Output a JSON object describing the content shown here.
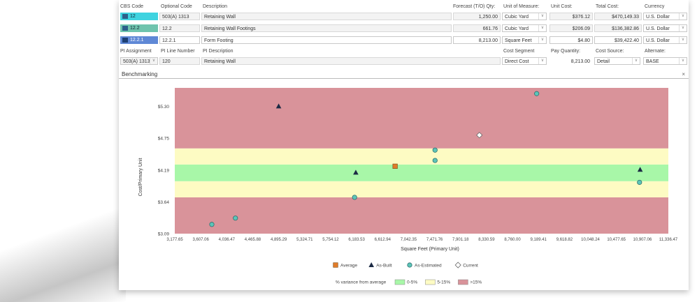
{
  "header": {
    "cbs_code": "CBS Code",
    "optional_code": "Optional Code",
    "description": "Description",
    "forecast_qty": "Forecast (T/O) Qty:",
    "unit_of_measure": "Unit of Measure:",
    "unit_cost": "Unit Cost:",
    "total_cost": "Total Cost:",
    "currency": "Currency"
  },
  "rows": [
    {
      "cbs": "12",
      "optional": "503(A) 1313",
      "description": "Retaining Wall",
      "qty": "1,250.00",
      "uom": "Cubic Yard",
      "unit_cost": "$376.12",
      "total": "$470,149.33",
      "currency": "U.S. Dollar",
      "color": "#3fd3e0"
    },
    {
      "cbs": "12.2",
      "optional": "12.2",
      "description": "Retaining Wall Footings",
      "qty": "661.76",
      "uom": "Cubic Yard",
      "unit_cost": "$206.09",
      "total": "$136,382.86",
      "currency": "U.S. Dollar",
      "color": "#6fc4ae"
    },
    {
      "cbs": "12.2.1",
      "optional": "12.2.1",
      "description": "Form Footing",
      "qty": "8,213.00",
      "uom": "Square Feet",
      "unit_cost": "$4.80",
      "total": "$39,422.40",
      "currency": "U.S. Dollar",
      "color": "#5f88d6"
    }
  ],
  "pi": {
    "assignment_label": "PI Assignment",
    "line_number_label": "PI Line Number",
    "description_label": "PI Description",
    "cost_segment_label": "Cost Segment",
    "pay_quantity_label": "Pay Quantity:",
    "cost_source_label": "Cost Source:",
    "alternate_label": "Alternate:",
    "assignment": "503(A) 1313",
    "line_number": "120",
    "description": "Retaining Wall",
    "cost_segment": "Direct Cost",
    "pay_quantity": "8,213.00",
    "cost_source": "Detail",
    "alternate": "BASE"
  },
  "benchmark": {
    "title": "Benchmarking",
    "close": "×"
  },
  "chart_data": {
    "type": "scatter",
    "xlabel": "Square Feet (Primary Unit)",
    "ylabel": "Cost/Primary Unit",
    "xlim": [
      3177.65,
      11336.47
    ],
    "ylim": [
      3.09,
      5.62
    ],
    "x_ticks": [
      "3,177.65",
      "3,607.06",
      "4,036.47",
      "4,465.88",
      "4,895.29",
      "5,324.71",
      "5,754.12",
      "6,183.53",
      "6,612.94",
      "7,042.35",
      "7,471.76",
      "7,901.18",
      "8,330.59",
      "8,760.00",
      "9,189.41",
      "9,618.82",
      "10,048.24",
      "10,477.65",
      "10,907.06",
      "11,336.47"
    ],
    "x_tick_values": [
      3177.65,
      3607.06,
      4036.47,
      4465.88,
      4895.29,
      5324.71,
      5754.12,
      6183.53,
      6612.94,
      7042.35,
      7471.76,
      7901.18,
      8330.59,
      8760.0,
      9189.41,
      9618.82,
      10048.24,
      10477.65,
      10907.06,
      11336.47
    ],
    "y_ticks": [
      "$3.09",
      "$3.64",
      "$4.19",
      "$4.75",
      "$5.30"
    ],
    "y_tick_values": [
      3.09,
      3.64,
      4.19,
      4.75,
      5.3
    ],
    "bands": [
      {
        "from": 3.09,
        "to": 3.72,
        "color": "#d9939a"
      },
      {
        "from": 3.72,
        "to": 4.0,
        "color": "#fdfbc3"
      },
      {
        "from": 4.0,
        "to": 4.29,
        "color": "#a8f7a8"
      },
      {
        "from": 4.29,
        "to": 4.57,
        "color": "#fdfbc3"
      },
      {
        "from": 4.57,
        "to": 5.62,
        "color": "#d9939a"
      }
    ],
    "series": [
      {
        "name": "Average",
        "marker": "square",
        "color": "#e07b2a",
        "points": [
          [
            6820,
            4.26
          ]
        ]
      },
      {
        "name": "As-Built",
        "marker": "triangle",
        "color": "#1b2a44",
        "points": [
          [
            4895,
            5.3
          ],
          [
            6170,
            4.15
          ],
          [
            10870,
            4.2
          ]
        ]
      },
      {
        "name": "As-Estimated",
        "marker": "circle",
        "color": "#5cc5b8",
        "points": [
          [
            3790,
            3.25
          ],
          [
            4180,
            3.36
          ],
          [
            6150,
            3.72
          ],
          [
            7480,
            4.36
          ],
          [
            7480,
            4.54
          ],
          [
            9160,
            5.52
          ],
          [
            10860,
            3.98
          ]
        ]
      },
      {
        "name": "Current",
        "marker": "diamond",
        "color": "#ffffff",
        "points": [
          [
            8213,
            4.8
          ]
        ]
      }
    ],
    "variance_label": "% variance from average",
    "variance_legend": [
      {
        "label": "0-5%",
        "color": "#a8f7a8"
      },
      {
        "label": "5-15%",
        "color": "#fdfbc3"
      },
      {
        "label": ">15%",
        "color": "#d9939a"
      }
    ]
  }
}
